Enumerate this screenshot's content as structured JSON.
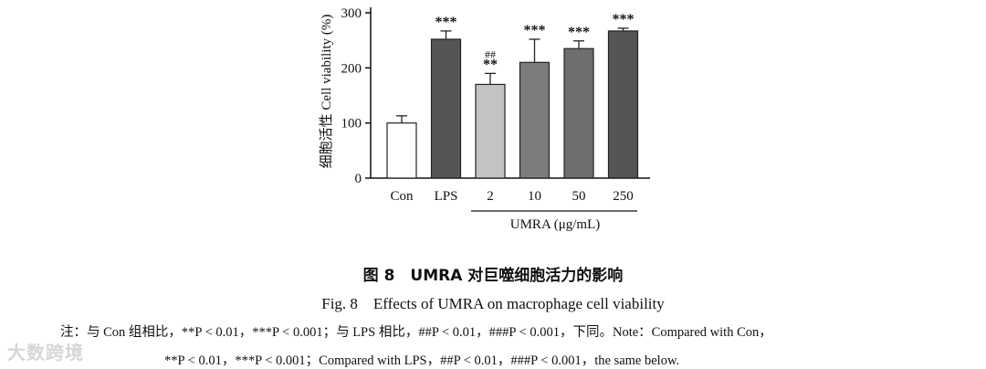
{
  "chart_data": {
    "type": "bar",
    "categories": [
      "Con",
      "LPS",
      "2",
      "10",
      "50",
      "250"
    ],
    "values": [
      100,
      252,
      170,
      210,
      235,
      267
    ],
    "errors": [
      13,
      15,
      20,
      42,
      14,
      5
    ],
    "colors": [
      "#ffffff",
      "#555555",
      "#c3c3c3",
      "#7c7c7c",
      "#6e6e6e",
      "#555555"
    ],
    "significance": [
      "",
      "***",
      "**",
      "***",
      "***",
      "***"
    ],
    "hash_marks": [
      "",
      "",
      "##",
      "",
      "",
      ""
    ],
    "ylabel": "细胞活性 Cell viability (%)",
    "ylim": [
      0,
      300
    ],
    "yticks": [
      0,
      100,
      200,
      300
    ],
    "group_label": "UMRA (μg/mL)"
  },
  "figure": {
    "caption_cn": "图 8　UMRA 对巨噬细胞活力的影响",
    "caption_en": "Fig. 8　Effects of UMRA on macrophage cell viability",
    "note_line1": "注：与 Con 组相比，**P < 0.01，***P < 0.001；与 LPS 相比，##P < 0.01，###P < 0.001，下同。Note：Compared with Con，",
    "note_line2": "**P < 0.01，***P < 0.001；Compared with LPS，##P < 0.01，###P < 0.001，the same below."
  },
  "watermark": "大数跨境"
}
